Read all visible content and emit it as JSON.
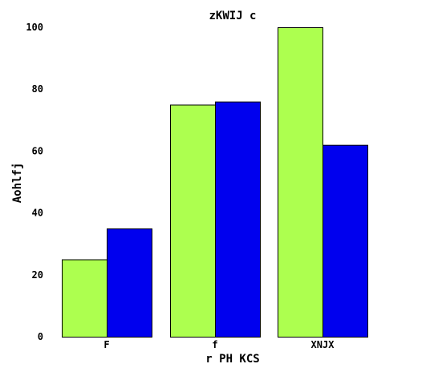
{
  "chart_data": {
    "type": "bar",
    "title": "zKWIJ c",
    "xlabel": "r PH KCS",
    "ylabel": "Aohlfj",
    "categories": [
      "F",
      "f",
      "XNJX"
    ],
    "series": [
      {
        "values": [
          25,
          75,
          100
        ],
        "color": "#adff4f"
      },
      {
        "values": [
          35,
          76,
          62
        ],
        "color": "#0000ee"
      }
    ],
    "ylim": [
      0,
      100
    ],
    "yticks": [
      0,
      20,
      40,
      60,
      80,
      100
    ],
    "grid": false,
    "legend": "none"
  }
}
